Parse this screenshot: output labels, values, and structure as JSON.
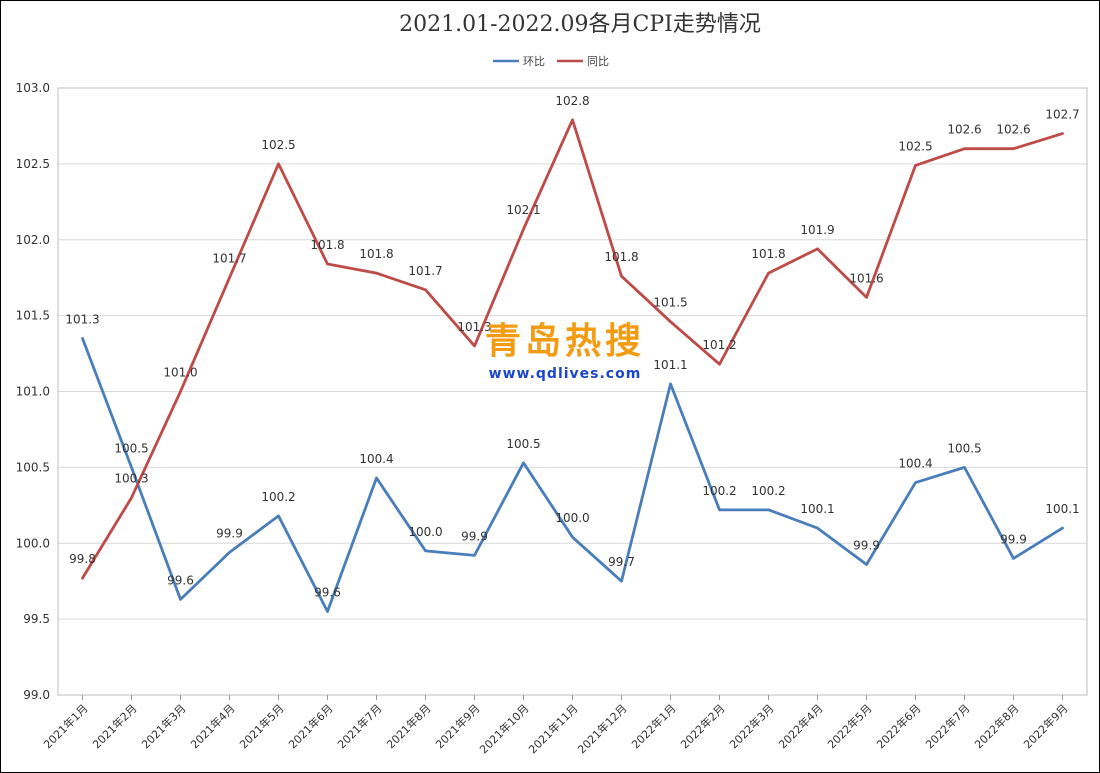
{
  "chart_data": {
    "type": "line",
    "title": "2021.01-2022.09各月CPI走势情况",
    "categories": [
      "2021年1月",
      "2021年2月",
      "2021年3月",
      "2021年4月",
      "2021年5月",
      "2021年6月",
      "2021年7月",
      "2021年8月",
      "2021年9月",
      "2021年10月",
      "2021年11月",
      "2021年12月",
      "2022年1月",
      "2022年2月",
      "2022年3月",
      "2022年4月",
      "2022年5月",
      "2022年6月",
      "2022年7月",
      "2022年8月",
      "2022年9月"
    ],
    "series": [
      {
        "name": "环比",
        "color": "#4a7ebb",
        "values": [
          101.35,
          100.5,
          99.63,
          99.94,
          100.18,
          99.55,
          100.43,
          99.95,
          99.92,
          100.53,
          100.04,
          99.75,
          101.05,
          100.22,
          100.22,
          100.1,
          99.86,
          100.4,
          100.5,
          99.9,
          100.1
        ],
        "labels": [
          "101.3",
          "100.5",
          "99.6",
          "99.9",
          "100.2",
          "99.6",
          "100.4",
          "100.0",
          "99.9",
          "100.5",
          "100.0",
          "99.7",
          "101.1",
          "100.2",
          "100.2",
          "100.1",
          "99.9",
          "100.4",
          "100.5",
          "99.9",
          "100.1"
        ]
      },
      {
        "name": "同比",
        "color": "#be4b48",
        "values": [
          99.77,
          100.3,
          101.0,
          101.75,
          102.5,
          101.84,
          101.78,
          101.67,
          101.3,
          102.07,
          102.79,
          101.76,
          101.46,
          101.18,
          101.78,
          101.94,
          101.62,
          102.49,
          102.6,
          102.6,
          102.7
        ],
        "labels": [
          "99.8",
          "100.3",
          "101.0",
          "101.7",
          "102.5",
          "101.8",
          "101.8",
          "101.7",
          "101.3",
          "102.1",
          "102.8",
          "101.8",
          "101.5",
          "101.2",
          "101.8",
          "101.9",
          "101.6",
          "102.5",
          "102.6",
          "102.6",
          "102.7"
        ]
      }
    ],
    "ylim": [
      99.0,
      103.0
    ],
    "yticks": [
      "99.0",
      "99.5",
      "100.0",
      "100.5",
      "101.0",
      "101.5",
      "102.0",
      "102.5",
      "103.0"
    ],
    "grid": true,
    "legend": "top-center"
  },
  "watermark": {
    "text": "青岛热搜",
    "url": "www.qdlives.com"
  }
}
